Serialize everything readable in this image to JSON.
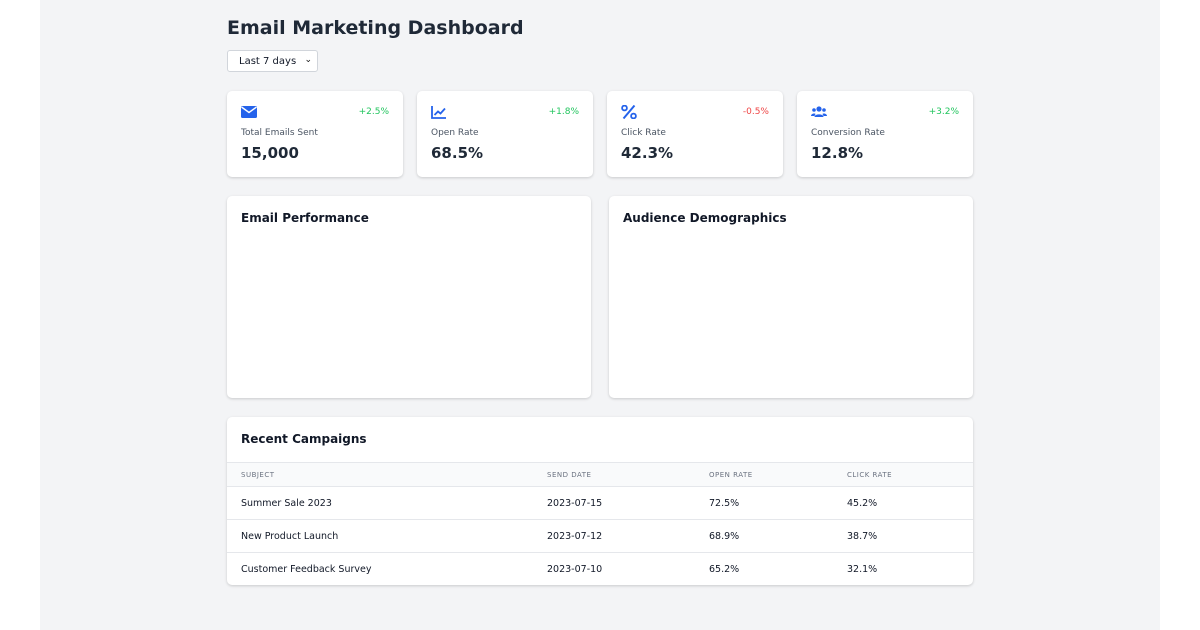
{
  "header": {
    "title": "Email Marketing Dashboard",
    "range": "Last 7 days"
  },
  "colors": {
    "accent": "#2563eb",
    "positive": "#22c55e",
    "negative": "#ef4444"
  },
  "stats": [
    {
      "icon": "envelope-icon",
      "label": "Total Emails Sent",
      "value": "15,000",
      "change": "+2.5%",
      "trend": "positive"
    },
    {
      "icon": "line-chart-icon",
      "label": "Open Rate",
      "value": "68.5%",
      "change": "+1.8%",
      "trend": "positive"
    },
    {
      "icon": "percent-icon",
      "label": "Click Rate",
      "value": "42.3%",
      "change": "-0.5%",
      "trend": "negative"
    },
    {
      "icon": "users-icon",
      "label": "Conversion Rate",
      "value": "12.8%",
      "change": "+3.2%",
      "trend": "positive"
    }
  ],
  "panels": {
    "performance_title": "Email Performance",
    "demographics_title": "Audience Demographics"
  },
  "campaigns": {
    "title": "Recent Campaigns",
    "columns": [
      "SUBJECT",
      "SEND DATE",
      "OPEN RATE",
      "CLICK RATE"
    ],
    "rows": [
      [
        "Summer Sale 2023",
        "2023-07-15",
        "72.5%",
        "45.2%"
      ],
      [
        "New Product Launch",
        "2023-07-12",
        "68.9%",
        "38.7%"
      ],
      [
        "Customer Feedback Survey",
        "2023-07-10",
        "65.2%",
        "32.1%"
      ]
    ]
  }
}
